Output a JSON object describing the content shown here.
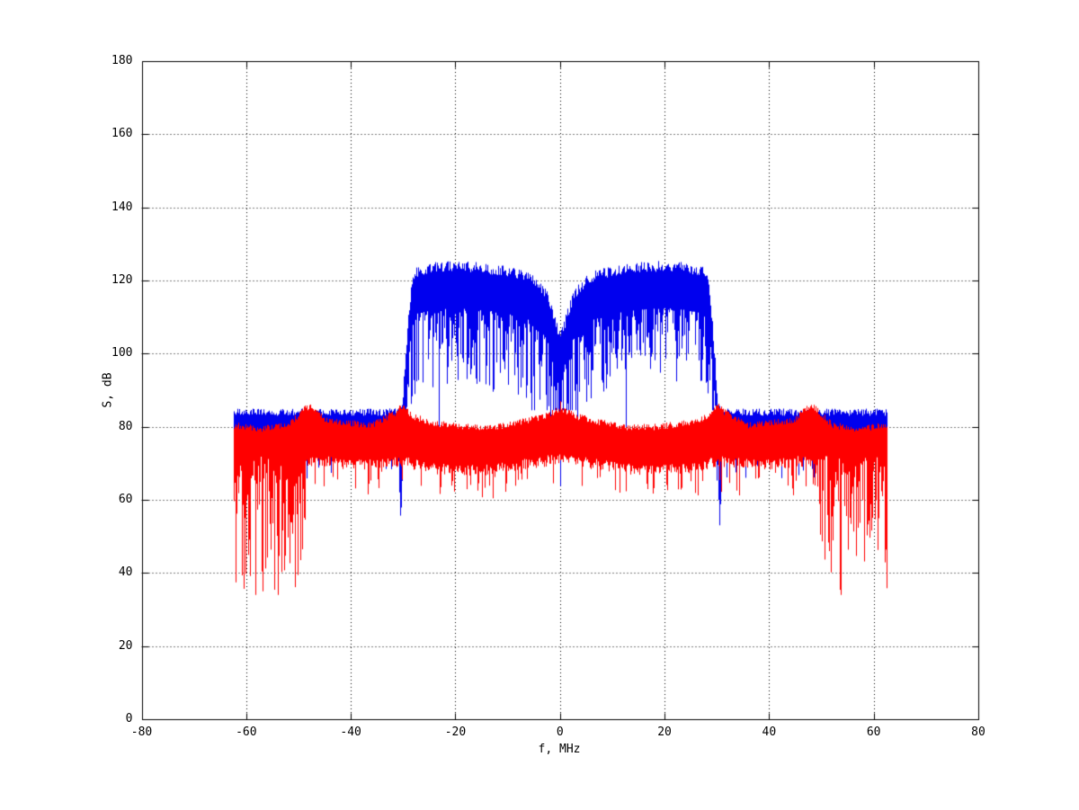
{
  "chart_data": {
    "type": "line",
    "title": "",
    "xlabel": "f, MHz",
    "ylabel": "S, dB",
    "xlim": [
      -80,
      80
    ],
    "ylim": [
      0,
      180
    ],
    "xticks": [
      -80,
      -60,
      -40,
      -20,
      0,
      20,
      40,
      60,
      80
    ],
    "yticks": [
      0,
      20,
      40,
      60,
      80,
      100,
      120,
      140,
      160,
      180
    ],
    "x_tick_labels": [
      "-80",
      "-60",
      "-40",
      "-20",
      "0",
      "20",
      "40",
      "60",
      "80"
    ],
    "y_tick_labels": [
      "0",
      "20",
      "40",
      "60",
      "80",
      "100",
      "120",
      "140",
      "160",
      "180"
    ],
    "grid": "dotted",
    "legend": "none",
    "band_range_mhz": [
      -62.5,
      62.5
    ],
    "series": [
      {
        "name": "blue",
        "color": "#0000ee",
        "description": "Wideband spectrum: flat noise band near 80 dB across +/-62.5 MHz with a double-lobed signal hump between -30 and +30 MHz peaking near 122-125 dB, a V-notch to ~104 dB at 0 MHz, and narrow deep notches at 0 and +/-30.5 MHz reaching ~52-58 dB.",
        "top_envelope": [
          [
            -62.5,
            83
          ],
          [
            -31,
            83
          ],
          [
            -30.2,
            84
          ],
          [
            -29.3,
            103
          ],
          [
            -28.4,
            118
          ],
          [
            -27.3,
            121
          ],
          [
            -24,
            122
          ],
          [
            -20,
            122.5
          ],
          [
            -15,
            122
          ],
          [
            -10,
            121
          ],
          [
            -6,
            119.5
          ],
          [
            -4,
            117
          ],
          [
            -2.5,
            114
          ],
          [
            -1.2,
            108.5
          ],
          [
            -0.4,
            104.5
          ],
          [
            0,
            103.5
          ],
          [
            0.4,
            104.5
          ],
          [
            1.2,
            108.5
          ],
          [
            2.5,
            114
          ],
          [
            4,
            117
          ],
          [
            6,
            119.5
          ],
          [
            10,
            121
          ],
          [
            15,
            122
          ],
          [
            20,
            122.5
          ],
          [
            24,
            122
          ],
          [
            27.3,
            121
          ],
          [
            28.4,
            118
          ],
          [
            29.3,
            103
          ],
          [
            30.2,
            84
          ],
          [
            31,
            83
          ],
          [
            62.5,
            83
          ]
        ],
        "outband_bottom_db": 78,
        "lobe_span_mhz": [
          -30,
          30
        ],
        "lobe_peak_db": 125,
        "notches": [
          {
            "f": -30.5,
            "min_db": 53,
            "half_width_mhz": 0.8
          },
          {
            "f": 0,
            "min_db": 58,
            "half_width_mhz": 0.35
          },
          {
            "f": 30.5,
            "min_db": 52,
            "half_width_mhz": 0.8
          }
        ]
      },
      {
        "name": "red",
        "color": "#ff0000",
        "description": "Noise-floor spectrum: band around 72-84 dB across +/-62.5 MHz with bumps to ~85 dB at 0, +/-30 and +/-48 MHz, and dense deep downward spikes to 35-60 dB near the band edges (|f| between 48 and 62.5 MHz).",
        "top_envelope": [
          [
            -62.5,
            79.5
          ],
          [
            -57,
            78.5
          ],
          [
            -52,
            79.5
          ],
          [
            -48.5,
            84.5
          ],
          [
            -47,
            84
          ],
          [
            -45,
            81
          ],
          [
            -40,
            80
          ],
          [
            -36,
            79.5
          ],
          [
            -31.5,
            83
          ],
          [
            -30,
            85
          ],
          [
            -28.5,
            82
          ],
          [
            -24,
            80
          ],
          [
            -18,
            79
          ],
          [
            -12,
            79
          ],
          [
            -7,
            80.5
          ],
          [
            -3,
            82
          ],
          [
            -0.8,
            83.5
          ],
          [
            0,
            84
          ],
          [
            0.8,
            83.5
          ],
          [
            3,
            82
          ],
          [
            7,
            80.5
          ],
          [
            12,
            79
          ],
          [
            18,
            79
          ],
          [
            24,
            80
          ],
          [
            28.5,
            82
          ],
          [
            30,
            85
          ],
          [
            31.5,
            83
          ],
          [
            36,
            79.5
          ],
          [
            40,
            80
          ],
          [
            45,
            81
          ],
          [
            47,
            84
          ],
          [
            48.5,
            84.5
          ],
          [
            52,
            79.5
          ],
          [
            57,
            78.5
          ],
          [
            62.5,
            79.5
          ]
        ],
        "bottom_envelope": [
          [
            -62.5,
            72
          ],
          [
            -50,
            72
          ],
          [
            -45,
            72
          ],
          [
            -40,
            71
          ],
          [
            -30,
            72
          ],
          [
            -25,
            70
          ],
          [
            -15,
            69.5
          ],
          [
            -8,
            71
          ],
          [
            -3,
            72
          ],
          [
            0,
            73
          ],
          [
            3,
            72
          ],
          [
            8,
            71
          ],
          [
            15,
            69.5
          ],
          [
            25,
            70
          ],
          [
            30,
            72
          ],
          [
            40,
            71
          ],
          [
            45,
            72
          ],
          [
            50,
            72
          ],
          [
            62.5,
            72
          ]
        ],
        "edge_spike_zones": [
          {
            "range": [
              -62.5,
              -48
            ],
            "min_db": 35
          },
          {
            "range": [
              48,
              62.5
            ],
            "min_db": 35
          }
        ],
        "center_spike": {
          "f": 0,
          "top_db": 87
        }
      }
    ]
  }
}
